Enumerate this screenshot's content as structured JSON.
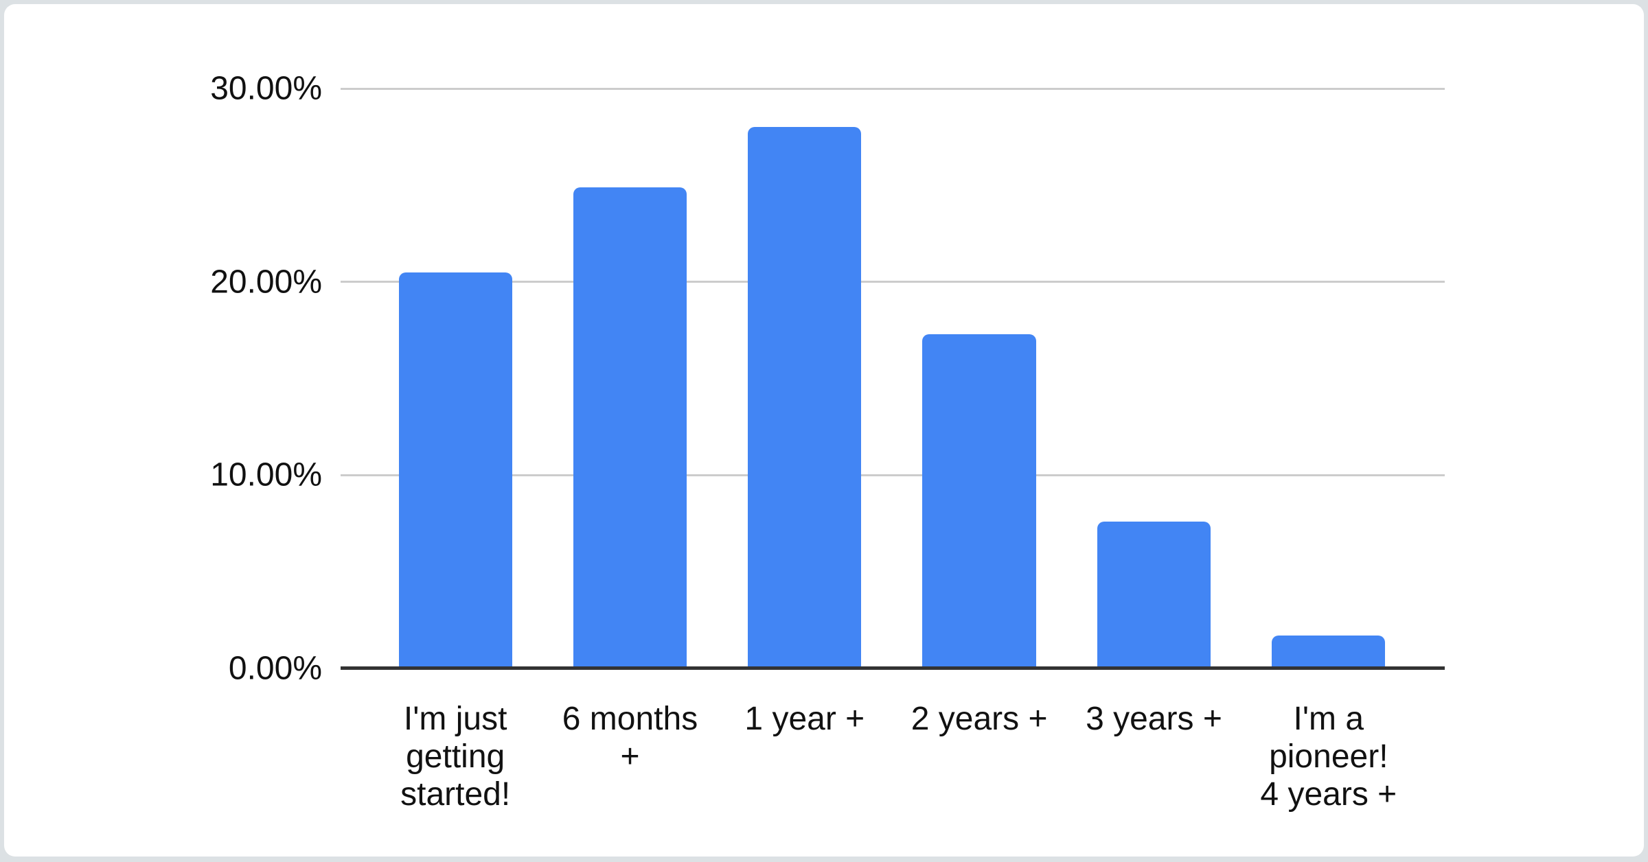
{
  "chart_data": {
    "type": "bar",
    "title": "",
    "legend": "none",
    "grid": true,
    "categories": [
      "I'm just\ngetting\nstarted!",
      "6 months\n+",
      "1 year +",
      "2 years +",
      "3 years +",
      "I'm a\npioneer!\n4 years +"
    ],
    "categories_full": [
      "I'm just getting started!",
      "6 months +",
      "1 year +",
      "2 years +",
      "3 years +",
      "I'm a pioneer! 4 years +"
    ],
    "values": [
      20.5,
      24.9,
      28.0,
      17.3,
      7.6,
      1.7
    ],
    "value_unit": "%",
    "xlabel": "",
    "ylabel": "",
    "y_axis": {
      "range": [
        0,
        30
      ],
      "ticks": [
        {
          "label": "0.00%",
          "value": 0
        },
        {
          "label": "10.00%",
          "value": 10
        },
        {
          "label": "20.00%",
          "value": 20
        },
        {
          "label": "30.00%",
          "value": 30
        }
      ]
    },
    "colors": {
      "bar": "#4285f4",
      "gridline": "#cccccc",
      "axis_line": "#333333",
      "text": "#111111",
      "card_bg": "#ffffff",
      "page_bg": "#dce1e4"
    }
  }
}
